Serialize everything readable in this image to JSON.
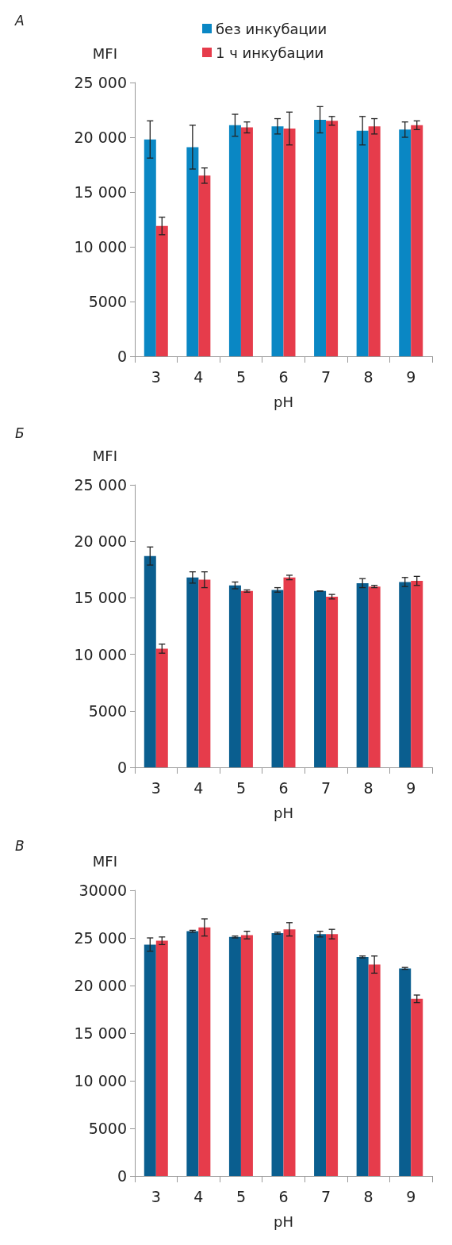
{
  "chart_data": [
    {
      "type": "bar",
      "title": "А",
      "xlabel": "pH",
      "ylabel": "MFI",
      "categories": [
        "3",
        "4",
        "5",
        "6",
        "7",
        "8",
        "9"
      ],
      "series": [
        {
          "name": "без инкубации",
          "color": "#0a87c4",
          "values": [
            19800,
            19100,
            21100,
            21000,
            21600,
            20600,
            20700
          ],
          "errors": [
            1700,
            2000,
            1000,
            700,
            1200,
            1300,
            700
          ]
        },
        {
          "name": "1 ч инкубации",
          "color": "#e63c4b",
          "values": [
            11900,
            16500,
            20900,
            20800,
            21500,
            21000,
            21100
          ],
          "errors": [
            800,
            700,
            500,
            1500,
            400,
            700,
            400
          ]
        }
      ],
      "ylim": [
        0,
        25000
      ],
      "yticks": [
        0,
        5000,
        {
          "value": 10000,
          "label": "10 000"
        },
        {
          "value": 15000,
          "label": "15 000"
        },
        {
          "value": 20000,
          "label": "20 000"
        },
        {
          "value": 25000,
          "label": "25 000"
        }
      ],
      "grid": false,
      "legend": "top"
    },
    {
      "type": "bar",
      "title": "Б",
      "xlabel": "pH",
      "ylabel": "MFI",
      "categories": [
        "3",
        "4",
        "5",
        "6",
        "7",
        "8",
        "9"
      ],
      "series": [
        {
          "color": "#0a5e8f",
          "values": [
            18700,
            16800,
            16100,
            15700,
            15600,
            16300,
            16400
          ],
          "errors": [
            800,
            500,
            300,
            200,
            0,
            400,
            400
          ]
        },
        {
          "color": "#e63c4b",
          "values": [
            10500,
            16600,
            15600,
            16800,
            15100,
            16000,
            16500
          ],
          "errors": [
            400,
            700,
            100,
            200,
            200,
            100,
            400
          ]
        }
      ],
      "ylim": [
        0,
        25000
      ],
      "yticks": [
        0,
        5000,
        {
          "value": 10000,
          "label": "10 000"
        },
        {
          "value": 15000,
          "label": "15 000"
        },
        {
          "value": 20000,
          "label": "20 000"
        },
        {
          "value": 25000,
          "label": "25 000"
        }
      ],
      "grid": false,
      "legend": false
    },
    {
      "type": "bar",
      "title": "В",
      "xlabel": "pH",
      "ylabel": "MFI",
      "categories": [
        "3",
        "4",
        "5",
        "6",
        "7",
        "8",
        "9"
      ],
      "series": [
        {
          "color": "#0a5e8f",
          "values": [
            24300,
            25700,
            25100,
            25500,
            25400,
            23000,
            21800
          ],
          "errors": [
            700,
            100,
            100,
            100,
            300,
            100,
            100
          ]
        },
        {
          "color": "#e63c4b",
          "values": [
            24700,
            26100,
            25300,
            25900,
            25400,
            22200,
            18600
          ],
          "errors": [
            400,
            900,
            400,
            700,
            500,
            900,
            400
          ]
        }
      ],
      "ylim": [
        0,
        30000
      ],
      "yticks": [
        0,
        5000,
        {
          "value": 10000,
          "label": "10 000"
        },
        {
          "value": 15000,
          "label": "15 000"
        },
        {
          "value": 20000,
          "label": "20 000"
        },
        {
          "value": 25000,
          "label": "25 000"
        },
        30000
      ],
      "grid": false,
      "legend": false
    }
  ]
}
